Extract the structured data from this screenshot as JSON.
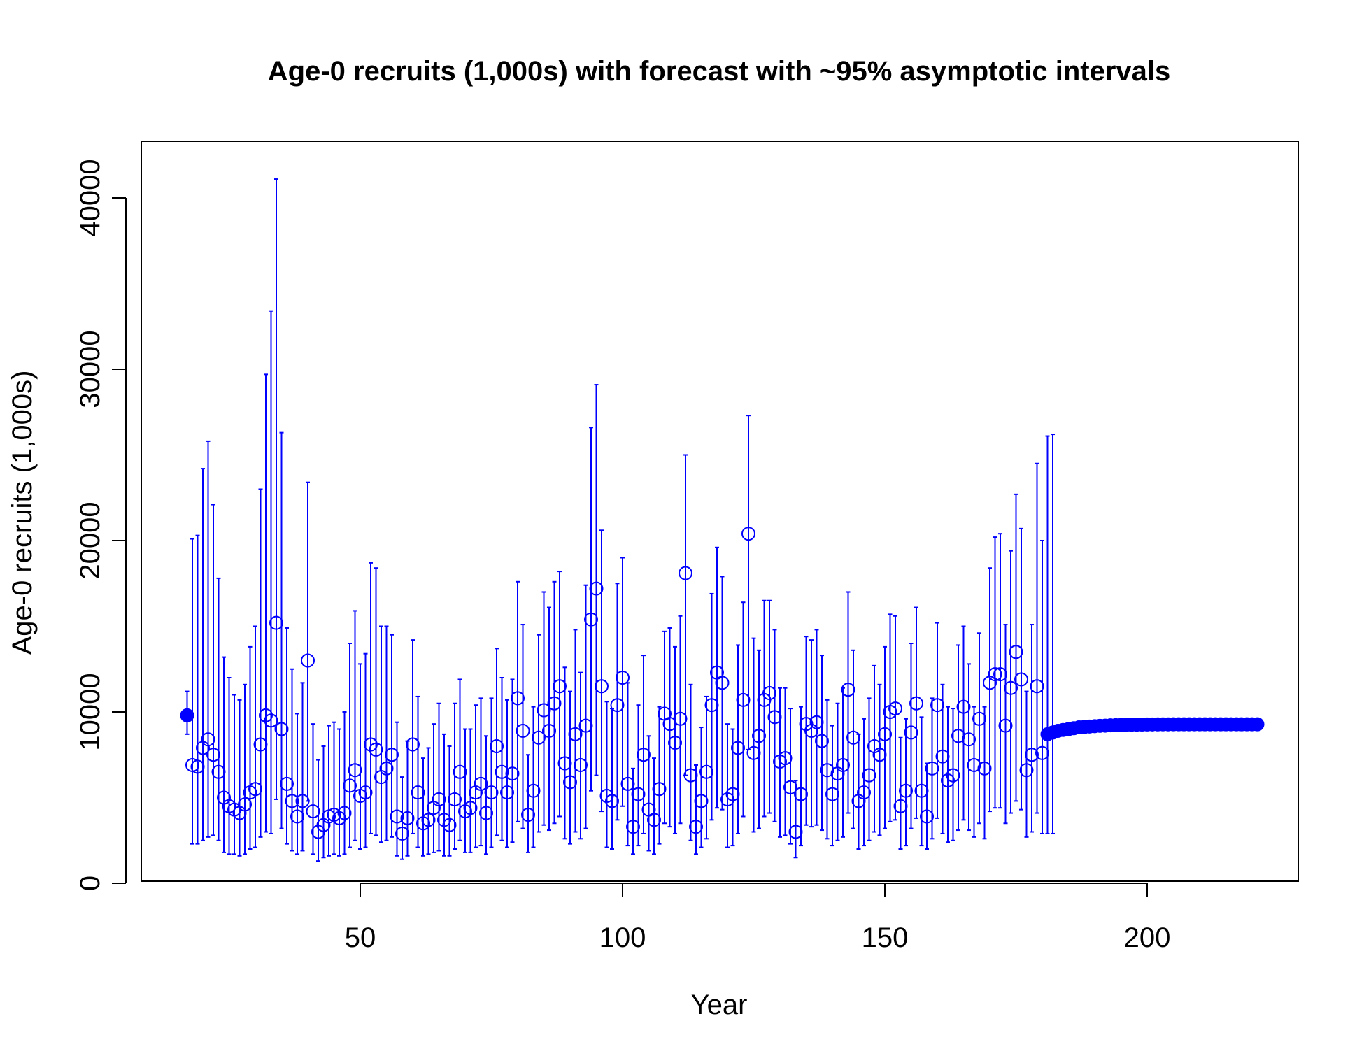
{
  "chart_data": {
    "type": "scatter",
    "title": "Age-0 recruits (1,000s) with forecast with ~95% asymptotic intervals",
    "xlabel": "Year",
    "ylabel": "Age-0 recruits (1,000s)",
    "xlim": [
      10,
      228
    ],
    "ylim": [
      0,
      43000
    ],
    "x_ticks": [
      50,
      100,
      150,
      200
    ],
    "y_ticks": [
      0,
      10000,
      20000,
      30000,
      40000
    ],
    "grid": false,
    "legend": "none",
    "colors": {
      "series": "#0000ff",
      "frame": "#000000"
    },
    "series": [
      {
        "marker": "filled-circle",
        "x": [
          17
        ],
        "y": [
          9800
        ],
        "lower": [
          8700
        ],
        "upper": [
          11200
        ]
      },
      {
        "marker": "open-circle",
        "x": [
          18,
          19,
          20,
          21,
          22,
          23,
          24,
          25,
          26,
          27,
          28,
          29,
          30,
          31,
          32,
          33,
          34,
          35,
          36,
          37,
          38,
          39,
          40,
          41,
          42,
          43,
          44,
          45,
          46,
          47,
          48,
          49,
          50,
          51,
          52,
          53,
          54,
          55,
          56,
          57,
          58,
          59,
          60,
          61,
          62,
          63,
          64,
          65,
          66,
          67,
          68,
          69,
          70,
          71,
          72,
          73,
          74,
          75,
          76,
          77,
          78,
          79,
          80,
          81,
          82,
          83,
          84,
          85,
          86,
          87,
          88,
          89,
          90,
          91,
          92,
          93,
          94,
          95,
          96,
          97,
          98,
          99,
          100,
          101,
          102,
          103,
          104,
          105,
          106,
          107,
          108,
          109,
          110,
          111,
          112,
          113,
          114,
          115,
          116,
          117,
          118,
          119,
          120,
          121,
          122,
          123,
          124,
          125,
          126,
          127,
          128,
          129,
          130,
          131,
          132,
          133,
          134,
          135,
          136,
          137,
          138,
          139,
          140,
          141,
          142,
          143,
          144,
          145,
          146,
          147,
          148,
          149,
          150,
          151,
          152,
          153,
          154,
          155,
          156,
          157,
          158,
          159,
          160,
          161,
          162,
          163,
          164,
          165,
          166,
          167,
          168,
          169,
          170,
          171,
          172,
          173,
          174,
          175,
          176,
          177,
          178,
          179,
          180
        ],
        "y": [
          6900,
          6800,
          7900,
          8400,
          7500,
          6500,
          5000,
          4500,
          4300,
          4100,
          4600,
          5300,
          5500,
          8100,
          9800,
          9500,
          15200,
          9000,
          5800,
          4800,
          3900,
          4800,
          13000,
          4200,
          3000,
          3400,
          3900,
          4000,
          3800,
          4100,
          5700,
          6600,
          5100,
          5300,
          8100,
          7800,
          6200,
          6700,
          7500,
          3900,
          2900,
          3800,
          8100,
          5300,
          3500,
          3700,
          4400,
          4900,
          3700,
          3400,
          4900,
          6500,
          4200,
          4400,
          5300,
          5800,
          4100,
          5300,
          8000,
          6500,
          5300,
          6400,
          10800,
          8900,
          4000,
          5400,
          8500,
          10100,
          8900,
          10500,
          11500,
          7000,
          5900,
          8700,
          6900,
          9200,
          15400,
          17200,
          11500,
          5100,
          4800,
          10400,
          12000,
          5800,
          3300,
          5200,
          7500,
          4300,
          3700,
          5500,
          9900,
          9300,
          8200,
          9600,
          18100,
          6300,
          3300,
          4800,
          6500,
          10400,
          12300,
          11700,
          4900,
          5200,
          7900,
          10700,
          20400,
          7600,
          8600,
          10700,
          11100,
          9700,
          7100,
          7300,
          5600,
          3000,
          5200,
          9300,
          8900,
          9400,
          8300,
          6600,
          5200,
          6400,
          6900,
          11300,
          8500,
          4800,
          5300,
          6300,
          8000,
          7500,
          8700,
          10000,
          10200,
          4500,
          5400,
          8800,
          10500,
          5400,
          3900,
          6700,
          10400,
          7400,
          6000,
          6300,
          8600,
          10300,
          8400,
          6900,
          9600,
          6700,
          11700,
          12200,
          12200,
          9200,
          11400,
          13500,
          11900,
          6600,
          7500,
          11500,
          7600
        ],
        "lower": [
          2300,
          2300,
          2500,
          2700,
          2800,
          2500,
          1800,
          1700,
          1700,
          1600,
          1700,
          2000,
          2100,
          2700,
          3000,
          2900,
          4900,
          3200,
          2300,
          1900,
          1700,
          1900,
          4800,
          1700,
          1300,
          1500,
          1600,
          1700,
          1600,
          1700,
          2100,
          2500,
          2000,
          2100,
          2900,
          2800,
          2400,
          2500,
          2700,
          1600,
          1400,
          1600,
          2900,
          2100,
          1600,
          1700,
          1800,
          1900,
          1600,
          1600,
          2000,
          2500,
          1800,
          1800,
          2100,
          2200,
          1700,
          2100,
          2800,
          2500,
          2100,
          2400,
          3600,
          3200,
          1800,
          2100,
          3000,
          3400,
          3100,
          3500,
          3900,
          2600,
          2300,
          3000,
          2600,
          3200,
          5400,
          6300,
          4200,
          2100,
          2000,
          3700,
          4500,
          2200,
          1700,
          2200,
          2900,
          1900,
          1700,
          2300,
          3500,
          3300,
          2900,
          3500,
          6300,
          2500,
          1700,
          2100,
          2600,
          3700,
          4400,
          4300,
          2100,
          2200,
          2900,
          3900,
          7800,
          3000,
          3200,
          3900,
          4100,
          3600,
          2700,
          2800,
          2300,
          1500,
          2200,
          3400,
          3300,
          3400,
          3100,
          2600,
          2200,
          2500,
          2700,
          4100,
          3200,
          2000,
          2200,
          2500,
          3000,
          2800,
          3200,
          3600,
          3700,
          2000,
          2200,
          3200,
          3800,
          2200,
          2000,
          2600,
          3800,
          2900,
          2400,
          2500,
          3100,
          3700,
          3100,
          2700,
          3500,
          2600,
          4200,
          4400,
          4400,
          3500,
          4100,
          4800,
          4300,
          2700,
          3000,
          4100,
          2900
        ],
        "upper": [
          20100,
          20300,
          24200,
          25800,
          22100,
          17800,
          13200,
          12000,
          11000,
          10700,
          11600,
          13800,
          15000,
          23000,
          29700,
          33400,
          41100,
          26300,
          14900,
          12500,
          9900,
          11700,
          23400,
          9300,
          7200,
          8000,
          9200,
          9400,
          9000,
          10000,
          14000,
          15900,
          12800,
          13400,
          18700,
          18400,
          15000,
          15000,
          14500,
          9400,
          6200,
          8300,
          14200,
          10900,
          7300,
          7900,
          9300,
          10500,
          8700,
          8000,
          10500,
          11900,
          9000,
          9000,
          10400,
          10800,
          8600,
          10800,
          13700,
          12000,
          10700,
          11900,
          17600,
          15100,
          7500,
          10300,
          14500,
          17000,
          16100,
          17600,
          18200,
          12600,
          11200,
          14800,
          12300,
          17400,
          26600,
          29100,
          20600,
          10600,
          10200,
          17500,
          19000,
          11700,
          6700,
          10400,
          13300,
          8600,
          7300,
          10300,
          14700,
          14900,
          13800,
          15600,
          25000,
          11600,
          6900,
          9100,
          10900,
          16900,
          19600,
          17900,
          9300,
          9000,
          13900,
          16400,
          27300,
          14300,
          13600,
          16500,
          16500,
          14800,
          11400,
          11400,
          10200,
          6000,
          10300,
          14400,
          14200,
          14800,
          13300,
          10700,
          9200,
          10500,
          11400,
          17000,
          13600,
          8700,
          9600,
          10800,
          12700,
          11600,
          13800,
          15700,
          15600,
          8500,
          9600,
          14000,
          16100,
          9700,
          7000,
          10800,
          15200,
          11600,
          10300,
          10200,
          13900,
          15000,
          12800,
          10300,
          14600,
          10300,
          18400,
          20200,
          20400,
          15100,
          19400,
          22700,
          20700,
          11200,
          15100,
          24500,
          20000
        ]
      },
      {
        "marker": "filled-circle",
        "x": [
          181,
          182,
          183,
          184,
          185,
          186,
          187,
          188,
          189,
          190,
          191,
          192,
          193,
          194,
          195,
          196,
          197,
          198,
          199,
          200,
          201,
          202,
          203,
          204,
          205,
          206,
          207,
          208,
          209,
          210,
          211,
          212,
          213,
          214,
          215,
          216,
          217,
          218,
          219,
          220,
          221
        ],
        "y": [
          8700,
          8800,
          8900,
          8950,
          9000,
          9050,
          9100,
          9120,
          9150,
          9170,
          9190,
          9200,
          9220,
          9230,
          9240,
          9250,
          9255,
          9260,
          9265,
          9270,
          9272,
          9274,
          9276,
          9278,
          9280,
          9280,
          9280,
          9280,
          9280,
          9280,
          9280,
          9280,
          9280,
          9280,
          9280,
          9280,
          9280,
          9280,
          9280,
          9280,
          9280
        ],
        "lower": [
          2900,
          2900,
          null,
          null,
          null,
          null,
          null,
          null,
          null,
          null,
          null,
          null,
          null,
          null,
          null,
          null,
          null,
          null,
          null,
          null,
          null,
          null,
          null,
          null,
          null,
          null,
          null,
          null,
          null,
          null,
          null,
          null,
          null,
          null,
          null,
          null,
          null,
          null,
          null,
          null,
          null
        ],
        "upper": [
          26100,
          26200,
          null,
          null,
          null,
          null,
          null,
          null,
          null,
          null,
          null,
          null,
          null,
          null,
          null,
          null,
          null,
          null,
          null,
          null,
          null,
          null,
          null,
          null,
          null,
          null,
          null,
          null,
          null,
          null,
          null,
          null,
          null,
          null,
          null,
          null,
          null,
          null,
          null,
          null,
          null
        ]
      }
    ]
  }
}
